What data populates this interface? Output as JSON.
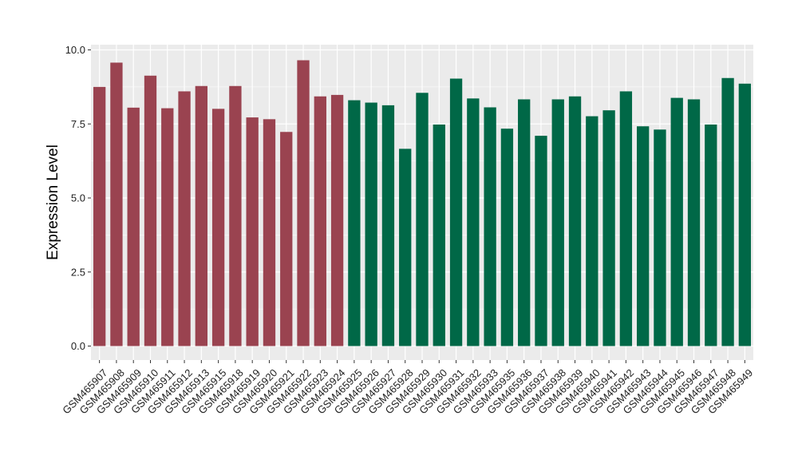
{
  "chart_data": {
    "type": "bar",
    "title": "",
    "xlabel": "",
    "ylabel": "Expression Level",
    "ylim": [
      0,
      10
    ],
    "yticks": [
      "0.0",
      "2.5",
      "5.0",
      "7.5",
      "10.0"
    ],
    "ytick_values": [
      0,
      2.5,
      5,
      7.5,
      10
    ],
    "grid": true,
    "legend": "none",
    "colors": {
      "group1": "#9A4350",
      "group2": "#006847",
      "panel": "#EBEBEB",
      "grid": "#FFFFFF"
    },
    "categories": [
      "GSM465907",
      "GSM465908",
      "GSM465909",
      "GSM465910",
      "GSM465911",
      "GSM465912",
      "GSM465913",
      "GSM465915",
      "GSM465918",
      "GSM465919",
      "GSM465920",
      "GSM465921",
      "GSM465922",
      "GSM465923",
      "GSM465924",
      "GSM465925",
      "GSM465926",
      "GSM465927",
      "GSM465928",
      "GSM465929",
      "GSM465930",
      "GSM465931",
      "GSM465932",
      "GSM465933",
      "GSM465935",
      "GSM465936",
      "GSM465937",
      "GSM465938",
      "GSM465939",
      "GSM465940",
      "GSM465941",
      "GSM465942",
      "GSM465943",
      "GSM465944",
      "GSM465945",
      "GSM465946",
      "GSM465947",
      "GSM465948",
      "GSM465949"
    ],
    "values": [
      8.75,
      9.57,
      8.05,
      9.13,
      8.03,
      8.6,
      8.78,
      8.01,
      8.78,
      7.72,
      7.66,
      7.23,
      9.65,
      8.43,
      8.48,
      8.3,
      8.22,
      8.13,
      6.66,
      8.55,
      7.48,
      9.03,
      8.36,
      8.06,
      7.34,
      8.33,
      7.1,
      8.33,
      8.43,
      7.76,
      7.96,
      8.6,
      7.42,
      7.31,
      8.38,
      8.33,
      7.48,
      9.05,
      8.86
    ],
    "groups": [
      1,
      1,
      1,
      1,
      1,
      1,
      1,
      1,
      1,
      1,
      1,
      1,
      1,
      1,
      1,
      2,
      2,
      2,
      2,
      2,
      2,
      2,
      2,
      2,
      2,
      2,
      2,
      2,
      2,
      2,
      2,
      2,
      2,
      2,
      2,
      2,
      2,
      2,
      2
    ]
  }
}
